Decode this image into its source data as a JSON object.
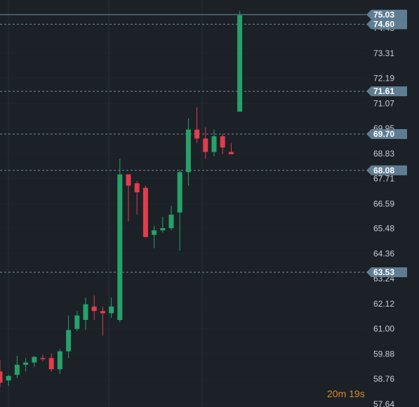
{
  "chart_data": {
    "type": "candlestick",
    "y_ticks": [
      "57.64",
      "58.76",
      "59.88",
      "61.00",
      "62.12",
      "63.24",
      "64.36",
      "65.48",
      "66.59",
      "67.71",
      "68.83",
      "69.95",
      "71.07",
      "72.19",
      "73.31",
      "74.43"
    ],
    "ylim": [
      57.64,
      75.6
    ],
    "price_levels": [
      {
        "value": 75.03,
        "label": "75.03",
        "style": "solid"
      },
      {
        "value": 74.6,
        "label": "74.60",
        "style": "dashed"
      },
      {
        "value": 71.61,
        "label": "71.61",
        "style": "dashed"
      },
      {
        "value": 69.7,
        "label": "69.70",
        "style": "dashed"
      },
      {
        "value": 68.08,
        "label": "68.08",
        "style": "dashed"
      },
      {
        "value": 63.53,
        "label": "63.53",
        "style": "dashed"
      }
    ],
    "candles": [
      {
        "o": 59.1,
        "h": 59.6,
        "l": 58.4,
        "c": 58.6
      },
      {
        "o": 58.7,
        "h": 58.95,
        "l": 58.45,
        "c": 58.9
      },
      {
        "o": 58.95,
        "h": 59.8,
        "l": 58.8,
        "c": 59.4
      },
      {
        "o": 59.4,
        "h": 59.7,
        "l": 59.1,
        "c": 59.5
      },
      {
        "o": 59.5,
        "h": 59.8,
        "l": 59.3,
        "c": 59.75
      },
      {
        "o": 59.7,
        "h": 59.85,
        "l": 59.55,
        "c": 59.65
      },
      {
        "o": 59.7,
        "h": 59.9,
        "l": 59.1,
        "c": 59.2
      },
      {
        "o": 59.2,
        "h": 60.1,
        "l": 59.0,
        "c": 60.0
      },
      {
        "o": 60.0,
        "h": 61.6,
        "l": 59.7,
        "c": 60.95
      },
      {
        "o": 61.0,
        "h": 61.8,
        "l": 60.9,
        "c": 61.6
      },
      {
        "o": 61.4,
        "h": 62.4,
        "l": 60.95,
        "c": 62.1
      },
      {
        "o": 62.0,
        "h": 62.5,
        "l": 61.4,
        "c": 61.8
      },
      {
        "o": 61.8,
        "h": 62.0,
        "l": 60.7,
        "c": 61.7
      },
      {
        "o": 61.7,
        "h": 62.4,
        "l": 61.5,
        "c": 62.0
      },
      {
        "o": 61.4,
        "h": 68.6,
        "l": 61.3,
        "c": 67.9
      },
      {
        "o": 67.9,
        "h": 67.9,
        "l": 65.8,
        "c": 67.4
      },
      {
        "o": 67.5,
        "h": 67.6,
        "l": 66.1,
        "c": 67.1
      },
      {
        "o": 67.3,
        "h": 67.4,
        "l": 65.1,
        "c": 65.1
      },
      {
        "o": 65.2,
        "h": 65.6,
        "l": 64.6,
        "c": 65.4
      },
      {
        "o": 65.4,
        "h": 66.0,
        "l": 65.3,
        "c": 65.5
      },
      {
        "o": 65.5,
        "h": 66.5,
        "l": 65.4,
        "c": 66.1
      },
      {
        "o": 66.2,
        "h": 68.1,
        "l": 64.5,
        "c": 68.0
      },
      {
        "o": 68.0,
        "h": 70.4,
        "l": 67.4,
        "c": 69.9
      },
      {
        "o": 69.9,
        "h": 70.9,
        "l": 69.3,
        "c": 69.5
      },
      {
        "o": 69.5,
        "h": 70.0,
        "l": 68.6,
        "c": 68.9
      },
      {
        "o": 68.9,
        "h": 69.9,
        "l": 68.7,
        "c": 69.6
      },
      {
        "o": 69.6,
        "h": 69.7,
        "l": 68.8,
        "c": 69.1
      },
      {
        "o": 68.9,
        "h": 69.3,
        "l": 68.8,
        "c": 68.8
      },
      {
        "o": 70.7,
        "h": 75.2,
        "l": 70.7,
        "c": 75.0
      }
    ]
  },
  "colors": {
    "background": "#1b2127",
    "up": "#26a269",
    "down": "#e23d4b",
    "grid": "#2a3038",
    "level_line": "#6f8fa3",
    "tag": "#5f7d92",
    "timer": "#d98a2b"
  },
  "timer": {
    "minutes": "20",
    "minutes_unit": "m",
    "seconds": "19",
    "seconds_unit": "s"
  }
}
